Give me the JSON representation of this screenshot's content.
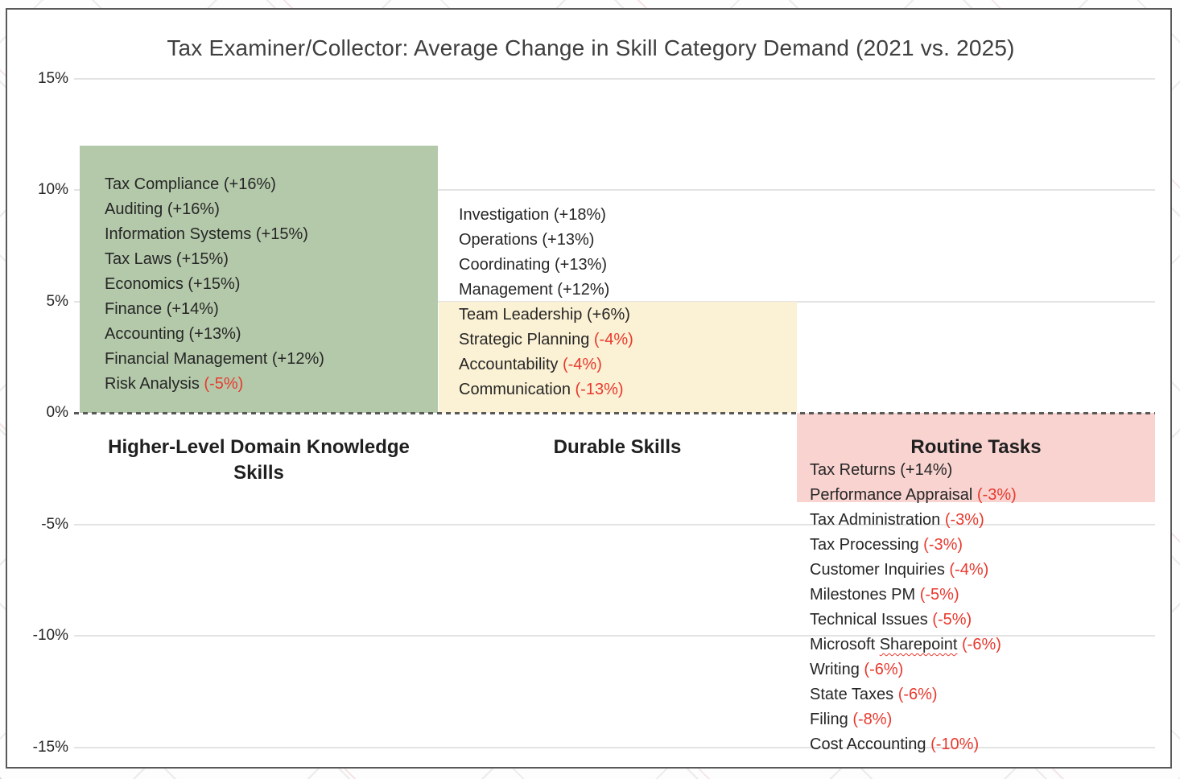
{
  "colors": {
    "border": "#595959",
    "gridline": "#e3e3e3",
    "zero_line": "#595959",
    "text": "#262626",
    "title_text": "#3f3f3f",
    "negative_text": "#e8392e",
    "green_bar": "#b4c9aa",
    "yellow_bar": "#fbf1d4",
    "pink_bar": "#f8d3d0"
  },
  "chart_data": {
    "type": "bar",
    "title": "Tax Examiner/Collector: Average Change in Skill Category Demand (2021 vs. 2025)",
    "xlabel": "",
    "ylabel": "",
    "ylim": [
      -15,
      15
    ],
    "grid": true,
    "legend": false,
    "zero_line_style": "dashed",
    "yticks": [
      {
        "label": "15%",
        "value": 15
      },
      {
        "label": "10%",
        "value": 10
      },
      {
        "label": "5%",
        "value": 5
      },
      {
        "label": "0%",
        "value": 0,
        "zero": true
      },
      {
        "label": "-5%",
        "value": -5
      },
      {
        "label": "-10%",
        "value": -10
      },
      {
        "label": "-15%",
        "value": -15
      }
    ],
    "categories": [
      "Higher-Level Domain Knowledge Skills",
      "Durable Skills",
      "Routine Tasks"
    ],
    "values": [
      12,
      5,
      -4
    ],
    "groups": [
      {
        "category": "Higher-Level Domain Knowledge Skills",
        "bar_value": 12,
        "bar_color": "#b4c9aa",
        "items": [
          {
            "label": "Tax Compliance",
            "change": "+16%"
          },
          {
            "label": "Auditing",
            "change": "+16%"
          },
          {
            "label": "Information Systems",
            "change": "+15%"
          },
          {
            "label": "Tax Laws",
            "change": "+15%"
          },
          {
            "label": "Economics",
            "change": "+15%"
          },
          {
            "label": "Finance",
            "change": "+14%"
          },
          {
            "label": "Accounting",
            "change": "+13%"
          },
          {
            "label": "Financial Management",
            "change": "+12%"
          },
          {
            "label": "Risk Analysis",
            "change": "-5%"
          }
        ]
      },
      {
        "category": "Durable Skills",
        "bar_value": 5,
        "bar_color": "#fbf1d4",
        "items": [
          {
            "label": "Investigation",
            "change": "+18%"
          },
          {
            "label": "Operations",
            "change": "+13%"
          },
          {
            "label": "Coordinating",
            "change": "+13%"
          },
          {
            "label": "Management",
            "change": "+12%"
          },
          {
            "label": "Team Leadership",
            "change": "+6%"
          },
          {
            "label": "Strategic Planning",
            "change": "-4%"
          },
          {
            "label": "Accountability",
            "change": "-4%"
          },
          {
            "label": "Communication",
            "change": "-13%"
          }
        ]
      },
      {
        "category": "Routine Tasks",
        "bar_value": -4,
        "bar_color": "#f8d3d0",
        "items": [
          {
            "label": "Tax Returns",
            "change": "+14%"
          },
          {
            "label": "Performance Appraisal",
            "change": "-3%"
          },
          {
            "label": "Tax Administration",
            "change": "-3%"
          },
          {
            "label": "Tax Processing",
            "change": "-3%"
          },
          {
            "label": "Customer Inquiries",
            "change": "-4%"
          },
          {
            "label": "Milestones PM",
            "change": "-5%"
          },
          {
            "label": "Technical Issues",
            "change": "-5%"
          },
          {
            "label": "Microsoft Sharepoint",
            "change": "-6%",
            "squiggle": "Sharepoint"
          },
          {
            "label": "Writing",
            "change": "-6%"
          },
          {
            "label": "State Taxes",
            "change": "-6%"
          },
          {
            "label": "Filing",
            "change": "-8%"
          },
          {
            "label": "Cost Accounting",
            "change": "-10%"
          }
        ]
      }
    ]
  }
}
